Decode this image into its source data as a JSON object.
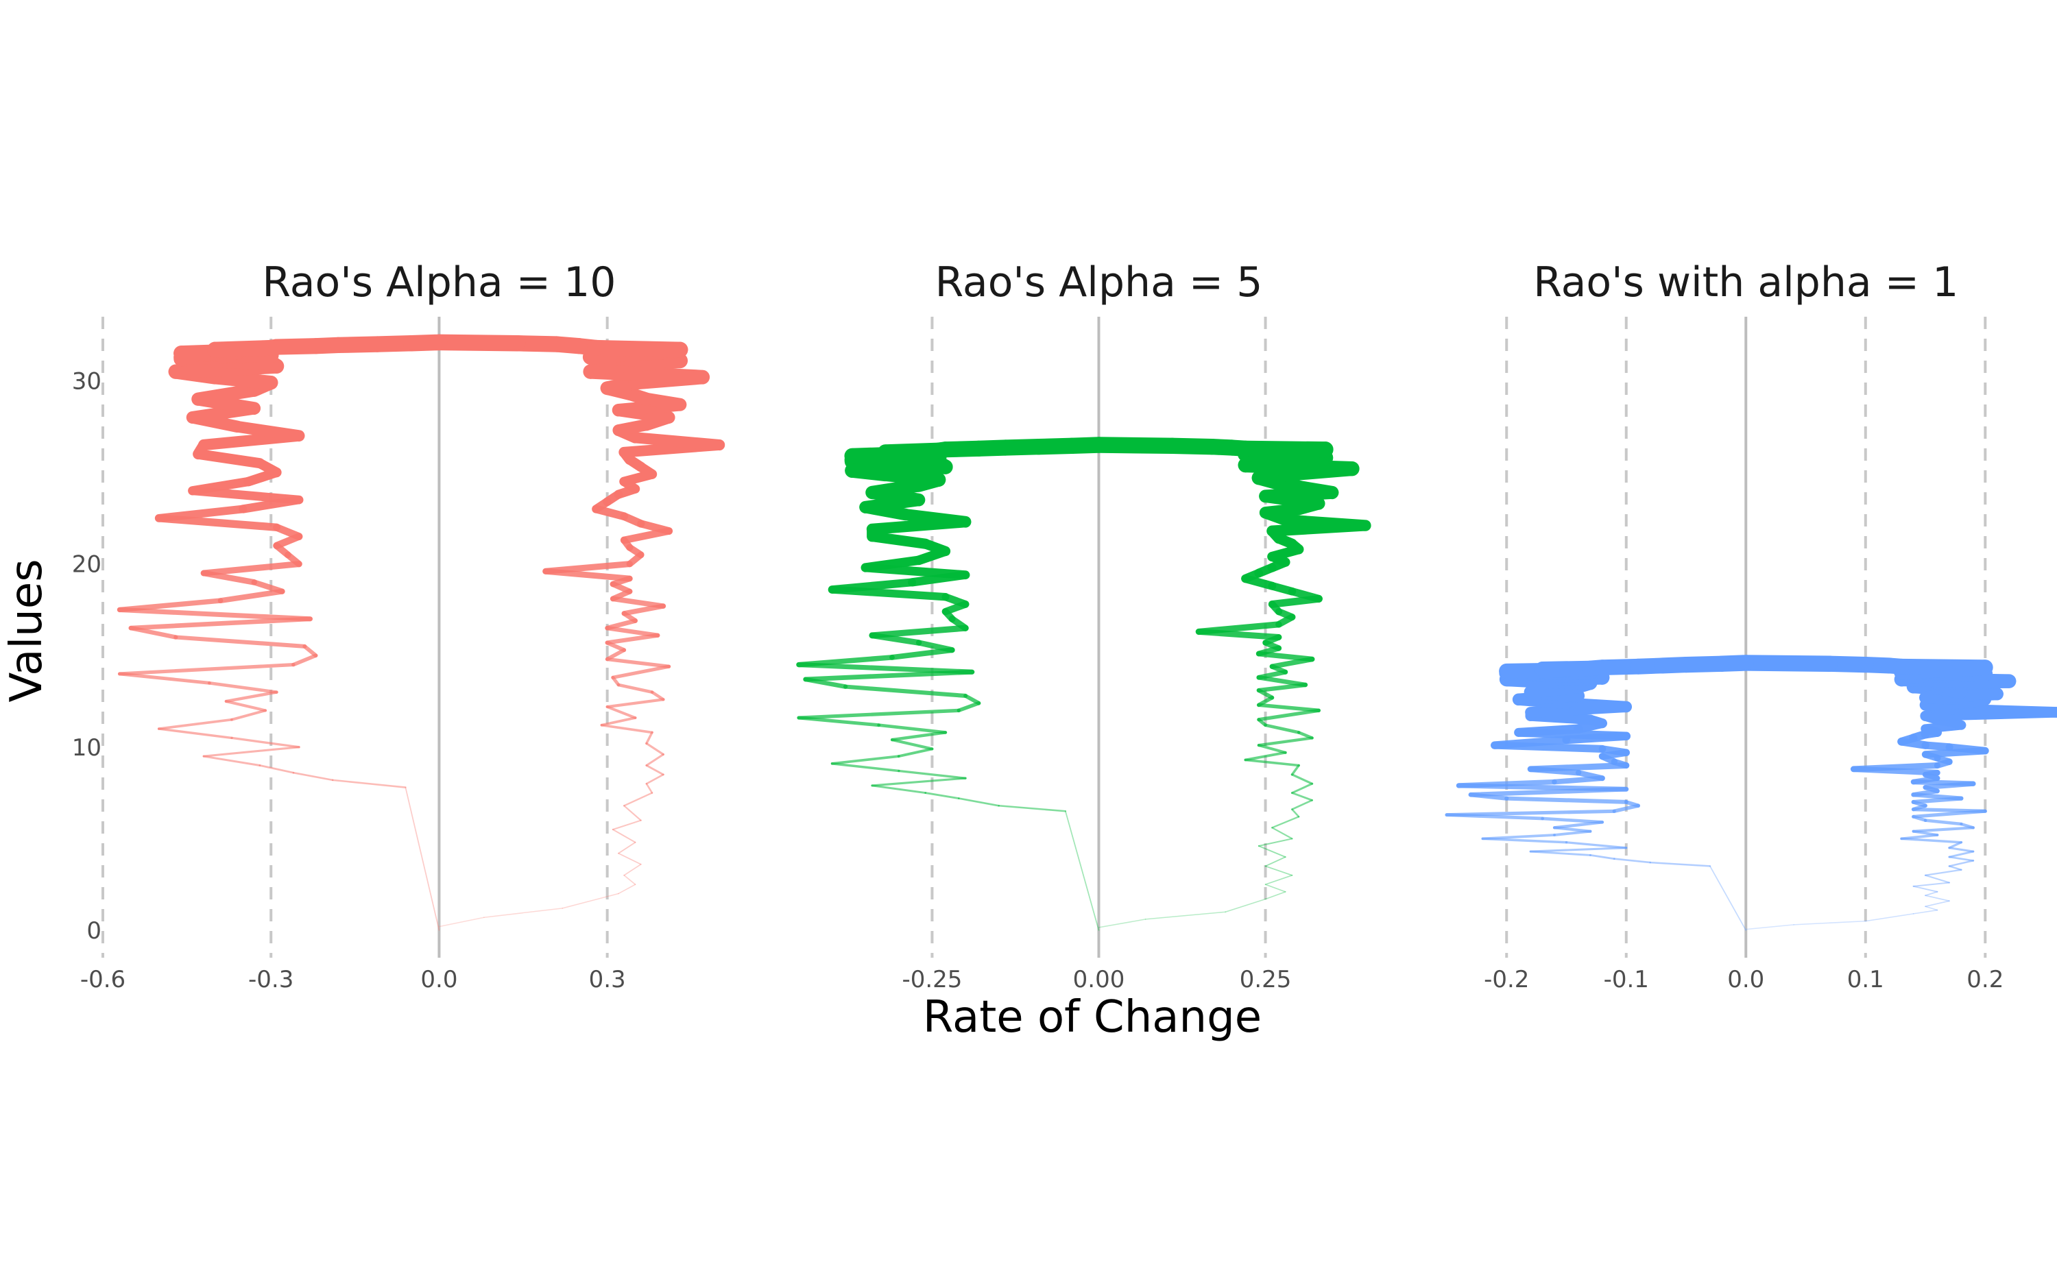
{
  "chart_data": [
    {
      "type": "line",
      "title": "Rao's Alpha = 10",
      "color": "#F8766D",
      "xlim": [
        -0.6,
        0.55
      ],
      "x_ticks": [
        -0.6,
        -0.3,
        0.0,
        0.3
      ],
      "x_tick_labels": [
        "-0.6",
        "-0.3",
        "0.0",
        "0.3"
      ],
      "reference_lines": [
        -0.6,
        -0.3,
        0.3
      ],
      "zero_line": 0,
      "series": [
        {
          "x": [
            0.0,
            0.08,
            0.22,
            0.32,
            0.35,
            0.33,
            0.36,
            0.32,
            0.35,
            0.31,
            0.36,
            0.33,
            0.38,
            0.37,
            0.4,
            0.37,
            0.4,
            0.37,
            0.38,
            0.29,
            0.35,
            0.3,
            0.4,
            0.38,
            0.32,
            0.31,
            0.41,
            0.3,
            0.33,
            0.3,
            0.39,
            0.3,
            0.35,
            0.33,
            0.4,
            0.31,
            0.34,
            0.31,
            0.34,
            0.19,
            0.34,
            0.36,
            0.34,
            0.33,
            0.41,
            0.36,
            0.33,
            0.28,
            0.3,
            0.32,
            0.35,
            0.33,
            0.38,
            0.36,
            0.34,
            0.33,
            0.5,
            0.35,
            0.32,
            0.37,
            0.41,
            0.32,
            0.43,
            0.37,
            0.34,
            0.3,
            0.35,
            0.47,
            0.27,
            0.3,
            0.43,
            0.27,
            0.34,
            0.4,
            0.43,
            0.28,
            0.25,
            0.21,
            0.14,
            0.0
          ],
          "y": [
            0.2,
            0.7,
            1.2,
            2.0,
            2.5,
            3.0,
            3.6,
            4.2,
            4.8,
            5.5,
            6.0,
            6.8,
            7.5,
            8.0,
            8.5,
            9.0,
            9.6,
            10.2,
            10.8,
            11.2,
            11.6,
            12.2,
            12.6,
            13.0,
            13.4,
            13.8,
            14.4,
            14.8,
            15.3,
            15.7,
            16.1,
            16.5,
            16.9,
            17.3,
            17.7,
            18.1,
            18.5,
            18.9,
            19.2,
            19.6,
            20.0,
            20.5,
            20.9,
            21.3,
            21.8,
            22.2,
            22.6,
            23.0,
            23.4,
            23.8,
            24.1,
            24.5,
            24.9,
            25.3,
            25.7,
            26.1,
            26.5,
            26.9,
            27.3,
            27.6,
            28.0,
            28.4,
            28.7,
            29.0,
            29.3,
            29.6,
            29.9,
            30.2,
            30.5,
            30.8,
            31.1,
            31.3,
            31.5,
            31.6,
            31.7,
            31.8,
            31.9,
            32.0,
            32.05,
            32.1
          ]
        },
        {
          "x": [
            0.0,
            -0.06,
            -0.19,
            -0.26,
            -0.32,
            -0.42,
            -0.25,
            -0.37,
            -0.5,
            -0.37,
            -0.31,
            -0.38,
            -0.29,
            -0.41,
            -0.57,
            -0.26,
            -0.22,
            -0.24,
            -0.47,
            -0.55,
            -0.23,
            -0.57,
            -0.39,
            -0.28,
            -0.33,
            -0.42,
            -0.25,
            -0.27,
            -0.29,
            -0.25,
            -0.29,
            -0.5,
            -0.35,
            -0.25,
            -0.44,
            -0.34,
            -0.29,
            -0.32,
            -0.43,
            -0.42,
            -0.25,
            -0.36,
            -0.44,
            -0.33,
            -0.43,
            -0.33,
            -0.3,
            -0.4,
            -0.47,
            -0.29,
            -0.3,
            -0.46,
            -0.46,
            -0.3,
            -0.46,
            -0.36,
            -0.4,
            -0.3,
            -0.29,
            -0.22,
            -0.18,
            -0.11,
            -0.05,
            0.0
          ],
          "y": [
            0.0,
            7.8,
            8.2,
            8.6,
            9.0,
            9.5,
            10.0,
            10.5,
            11.0,
            11.5,
            12.0,
            12.5,
            13.0,
            13.5,
            14.0,
            14.5,
            15.0,
            15.5,
            16.0,
            16.5,
            17.0,
            17.5,
            18.0,
            18.5,
            19.0,
            19.5,
            20.0,
            20.5,
            21.0,
            21.5,
            22.0,
            22.5,
            23.0,
            23.5,
            24.0,
            24.5,
            25.0,
            25.5,
            26.0,
            26.5,
            27.0,
            27.5,
            28.0,
            28.5,
            29.0,
            29.5,
            29.9,
            30.2,
            30.5,
            30.8,
            31.0,
            31.2,
            31.3,
            31.4,
            31.5,
            31.6,
            31.7,
            31.8,
            31.85,
            31.9,
            31.95,
            32.0,
            32.05,
            32.1
          ]
        }
      ]
    },
    {
      "type": "line",
      "title": "Rao's Alpha = 5",
      "color": "#00BA38",
      "xlim": [
        -0.45,
        0.45
      ],
      "x_ticks": [
        -0.25,
        0.0,
        0.25
      ],
      "x_tick_labels": [
        "-0.25",
        "0.00",
        "0.25"
      ],
      "reference_lines": [
        -0.25,
        0.25
      ],
      "zero_line": 0,
      "series": [
        {
          "x": [
            0.0,
            0.07,
            0.19,
            0.25,
            0.28,
            0.25,
            0.29,
            0.25,
            0.28,
            0.24,
            0.29,
            0.26,
            0.3,
            0.29,
            0.32,
            0.29,
            0.32,
            0.29,
            0.3,
            0.22,
            0.28,
            0.24,
            0.32,
            0.3,
            0.25,
            0.24,
            0.33,
            0.24,
            0.26,
            0.24,
            0.31,
            0.24,
            0.28,
            0.26,
            0.32,
            0.24,
            0.27,
            0.25,
            0.27,
            0.15,
            0.27,
            0.29,
            0.27,
            0.26,
            0.33,
            0.29,
            0.26,
            0.22,
            0.24,
            0.26,
            0.28,
            0.26,
            0.3,
            0.29,
            0.27,
            0.26,
            0.4,
            0.28,
            0.25,
            0.3,
            0.33,
            0.25,
            0.35,
            0.3,
            0.27,
            0.24,
            0.28,
            0.38,
            0.22,
            0.24,
            0.34,
            0.22,
            0.27,
            0.32,
            0.34,
            0.22,
            0.2,
            0.17,
            0.11,
            0.0
          ],
          "y": [
            0.15,
            0.6,
            1.0,
            1.7,
            2.1,
            2.5,
            3.0,
            3.5,
            4.0,
            4.6,
            5.0,
            5.6,
            6.2,
            6.6,
            7.1,
            7.5,
            8.0,
            8.5,
            9.0,
            9.3,
            9.7,
            10.1,
            10.5,
            10.8,
            11.2,
            11.5,
            12.0,
            12.3,
            12.7,
            13.1,
            13.4,
            13.8,
            14.1,
            14.4,
            14.8,
            15.1,
            15.4,
            15.7,
            16.0,
            16.3,
            16.7,
            17.1,
            17.4,
            17.8,
            18.1,
            18.5,
            18.8,
            19.2,
            19.5,
            19.8,
            20.1,
            20.4,
            20.8,
            21.1,
            21.4,
            21.8,
            22.1,
            22.4,
            22.8,
            23.0,
            23.3,
            23.7,
            23.9,
            24.2,
            24.4,
            24.7,
            24.9,
            25.2,
            25.4,
            25.6,
            25.8,
            26.0,
            26.1,
            26.2,
            26.25,
            26.3,
            26.35,
            26.4,
            26.45,
            26.5
          ]
        },
        {
          "x": [
            0.0,
            -0.05,
            -0.15,
            -0.21,
            -0.26,
            -0.34,
            -0.2,
            -0.3,
            -0.4,
            -0.3,
            -0.25,
            -0.31,
            -0.23,
            -0.33,
            -0.45,
            -0.21,
            -0.18,
            -0.2,
            -0.38,
            -0.44,
            -0.19,
            -0.45,
            -0.31,
            -0.22,
            -0.27,
            -0.34,
            -0.2,
            -0.22,
            -0.23,
            -0.2,
            -0.23,
            -0.4,
            -0.28,
            -0.2,
            -0.35,
            -0.27,
            -0.23,
            -0.26,
            -0.34,
            -0.34,
            -0.2,
            -0.29,
            -0.35,
            -0.27,
            -0.34,
            -0.27,
            -0.24,
            -0.32,
            -0.37,
            -0.23,
            -0.24,
            -0.37,
            -0.37,
            -0.24,
            -0.37,
            -0.29,
            -0.32,
            -0.24,
            -0.23,
            -0.18,
            -0.14,
            -0.09,
            -0.04,
            0.0
          ],
          "y": [
            0.0,
            6.5,
            6.8,
            7.2,
            7.5,
            7.9,
            8.3,
            8.7,
            9.1,
            9.5,
            9.9,
            10.4,
            10.8,
            11.2,
            11.6,
            12.0,
            12.4,
            12.8,
            13.3,
            13.7,
            14.1,
            14.5,
            14.9,
            15.3,
            15.7,
            16.1,
            16.5,
            17.0,
            17.4,
            17.8,
            18.2,
            18.6,
            19.0,
            19.4,
            19.8,
            20.2,
            20.7,
            21.1,
            21.5,
            21.9,
            22.3,
            22.7,
            23.1,
            23.5,
            23.9,
            24.3,
            24.6,
            24.9,
            25.1,
            25.3,
            25.5,
            25.6,
            25.7,
            25.8,
            25.9,
            26.0,
            26.1,
            26.2,
            26.25,
            26.3,
            26.35,
            26.4,
            26.45,
            26.5
          ]
        }
      ]
    },
    {
      "type": "line",
      "title": "Rao's with alpha = 1",
      "color": "#619CFF",
      "xlim": [
        -0.25,
        0.26
      ],
      "x_ticks": [
        -0.2,
        -0.1,
        0.0,
        0.1,
        0.2
      ],
      "x_tick_labels": [
        "-0.2",
        "-0.1",
        "0.0",
        "0.1",
        "0.2"
      ],
      "reference_lines": [
        -0.2,
        -0.1,
        0.1,
        0.2
      ],
      "zero_line": 0,
      "series": [
        {
          "x": [
            0.0,
            0.04,
            0.1,
            0.14,
            0.16,
            0.15,
            0.17,
            0.15,
            0.16,
            0.14,
            0.17,
            0.15,
            0.18,
            0.17,
            0.19,
            0.17,
            0.19,
            0.17,
            0.18,
            0.13,
            0.16,
            0.14,
            0.19,
            0.18,
            0.15,
            0.14,
            0.2,
            0.14,
            0.15,
            0.14,
            0.18,
            0.14,
            0.16,
            0.15,
            0.19,
            0.14,
            0.16,
            0.15,
            0.16,
            0.09,
            0.16,
            0.17,
            0.16,
            0.15,
            0.2,
            0.17,
            0.15,
            0.13,
            0.14,
            0.15,
            0.16,
            0.15,
            0.18,
            0.17,
            0.16,
            0.15,
            0.26,
            0.16,
            0.15,
            0.18,
            0.2,
            0.15,
            0.21,
            0.18,
            0.16,
            0.14,
            0.16,
            0.22,
            0.13,
            0.14,
            0.2,
            0.13,
            0.16,
            0.19,
            0.2,
            0.13,
            0.12,
            0.1,
            0.07,
            0.0
          ],
          "y": [
            0.05,
            0.3,
            0.5,
            0.9,
            1.1,
            1.3,
            1.6,
            1.9,
            2.1,
            2.4,
            2.6,
            3.0,
            3.3,
            3.5,
            3.8,
            4.0,
            4.3,
            4.5,
            4.8,
            5.0,
            5.2,
            5.4,
            5.6,
            5.8,
            6.0,
            6.2,
            6.5,
            6.6,
            6.8,
            7.0,
            7.2,
            7.4,
            7.6,
            7.8,
            8.0,
            8.1,
            8.3,
            8.5,
            8.6,
            8.8,
            9.0,
            9.2,
            9.4,
            9.6,
            9.8,
            10.0,
            10.1,
            10.3,
            10.5,
            10.7,
            10.8,
            11.0,
            11.2,
            11.4,
            11.5,
            11.7,
            11.9,
            12.1,
            12.3,
            12.4,
            12.6,
            12.7,
            12.9,
            13.0,
            13.2,
            13.3,
            13.5,
            13.6,
            13.7,
            13.9,
            14.0,
            14.1,
            14.2,
            14.3,
            14.35,
            14.4,
            14.45,
            14.5,
            14.55,
            14.6
          ]
        },
        {
          "x": [
            0.0,
            -0.03,
            -0.08,
            -0.11,
            -0.13,
            -0.18,
            -0.1,
            -0.15,
            -0.22,
            -0.16,
            -0.13,
            -0.16,
            -0.12,
            -0.17,
            -0.25,
            -0.11,
            -0.09,
            -0.1,
            -0.2,
            -0.23,
            -0.1,
            -0.24,
            -0.16,
            -0.12,
            -0.14,
            -0.18,
            -0.1,
            -0.11,
            -0.12,
            -0.1,
            -0.12,
            -0.21,
            -0.15,
            -0.1,
            -0.19,
            -0.14,
            -0.12,
            -0.13,
            -0.18,
            -0.18,
            -0.1,
            -0.15,
            -0.19,
            -0.14,
            -0.18,
            -0.14,
            -0.13,
            -0.17,
            -0.2,
            -0.12,
            -0.13,
            -0.19,
            -0.2,
            -0.13,
            -0.2,
            -0.15,
            -0.17,
            -0.13,
            -0.12,
            -0.09,
            -0.07,
            -0.05,
            -0.02,
            0.0
          ],
          "y": [
            0.0,
            3.5,
            3.7,
            3.9,
            4.1,
            4.3,
            4.5,
            4.8,
            5.0,
            5.2,
            5.4,
            5.6,
            5.9,
            6.1,
            6.3,
            6.5,
            6.8,
            7.0,
            7.2,
            7.4,
            7.7,
            7.9,
            8.1,
            8.3,
            8.6,
            8.8,
            9.0,
            9.2,
            9.5,
            9.7,
            9.9,
            10.1,
            10.4,
            10.6,
            10.8,
            11.0,
            11.3,
            11.5,
            11.7,
            11.9,
            12.2,
            12.4,
            12.6,
            12.8,
            13.0,
            13.3,
            13.5,
            13.6,
            13.7,
            13.8,
            13.9,
            14.0,
            14.05,
            14.1,
            14.15,
            14.2,
            14.25,
            14.3,
            14.35,
            14.4,
            14.45,
            14.5,
            14.55,
            14.6
          ]
        }
      ]
    }
  ],
  "y_axis": {
    "label": "Values",
    "ylim": [
      -1.5,
      33.5
    ],
    "ticks": [
      0,
      10,
      20,
      30
    ],
    "tick_labels": [
      "0",
      "10",
      "20",
      "30"
    ]
  },
  "x_axis": {
    "label": "Rate of Change"
  }
}
